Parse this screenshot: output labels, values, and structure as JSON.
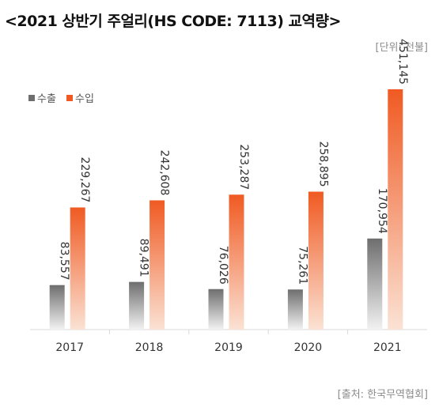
{
  "header": {
    "title": "<2021 상반기  주얼리(HS CODE: 7113)  교역량>",
    "unit": "[단위: 천불]"
  },
  "footer": {
    "source": "[출처: 한국무역협회]"
  },
  "colors": {
    "export_top": "#6e6e6e",
    "export_bottom": "#f2f2f2",
    "import_top": "#f05a22",
    "import_bottom": "#fbe2d4",
    "axis": "#d9d9d9"
  },
  "chart_data": {
    "type": "bar",
    "categories": [
      "2017",
      "2018",
      "2019",
      "2020",
      "2021"
    ],
    "series": [
      {
        "name": "수출",
        "values": [
          83557,
          89491,
          76026,
          75261,
          170954
        ],
        "labels": [
          "83,557",
          "89,491",
          "76,026",
          "75,261",
          "170,954"
        ]
      },
      {
        "name": "수입",
        "values": [
          229267,
          242608,
          253287,
          258895,
          451145
        ],
        "labels": [
          "229,267",
          "242,608",
          "253,287",
          "258,895",
          "451,145"
        ]
      }
    ],
    "ylim": [
      0,
      500000
    ],
    "grid": false,
    "legend": "top-left",
    "data_labels": "rotated vertical above bars"
  }
}
